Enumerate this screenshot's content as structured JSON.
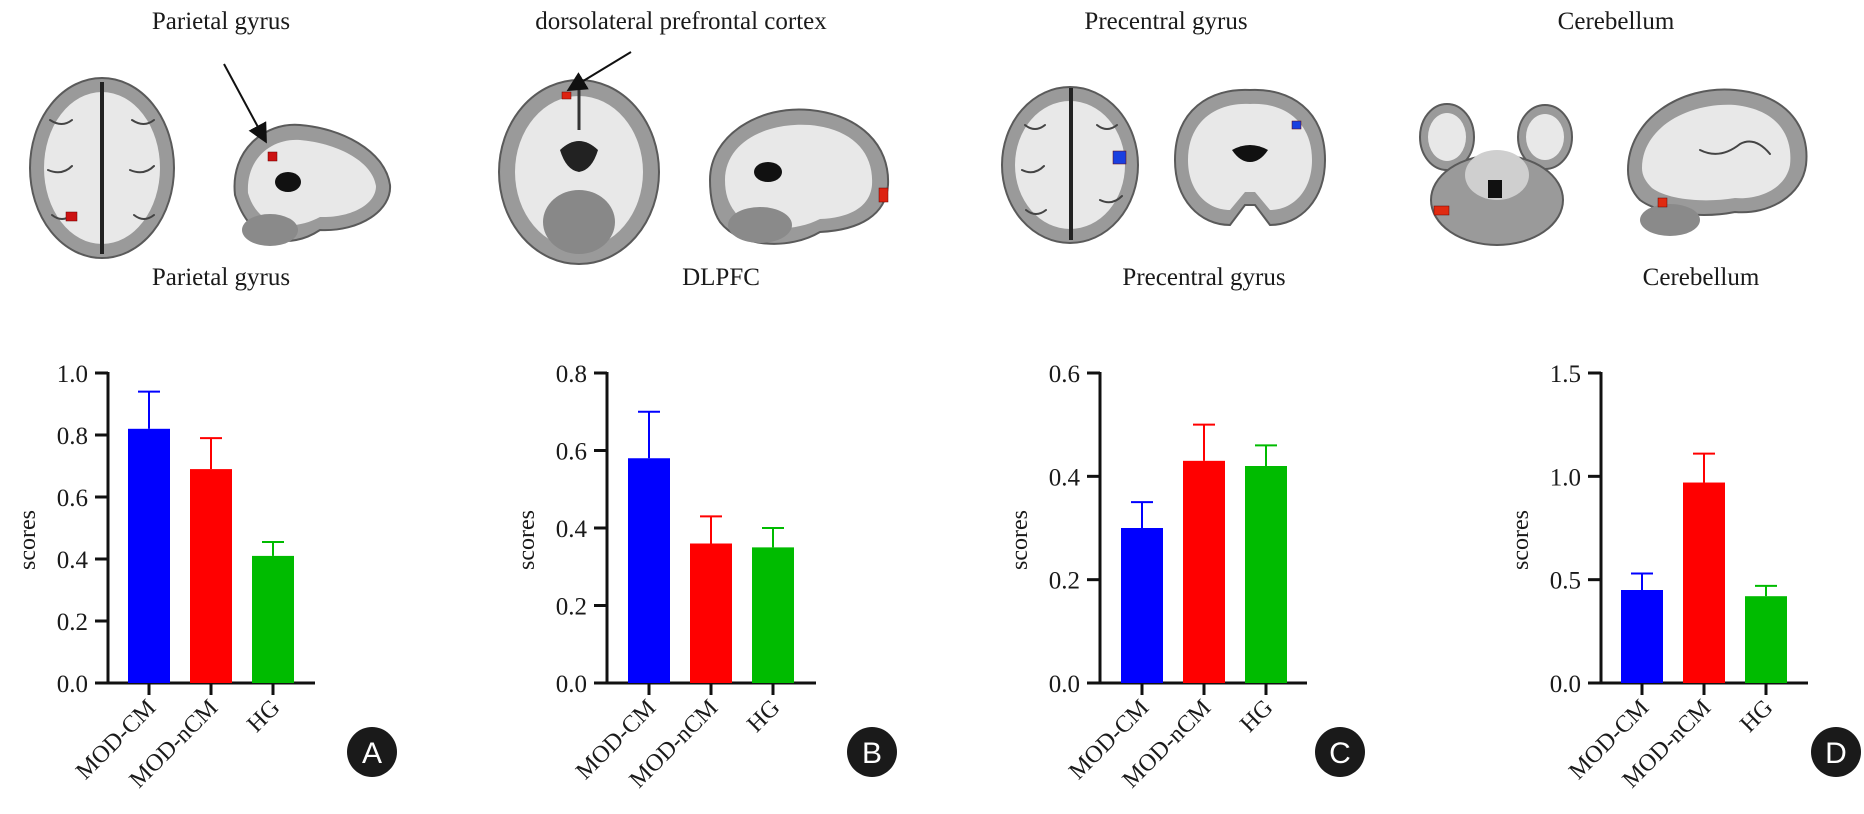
{
  "figure": {
    "regions": [
      {
        "label": "Parietal gyrus",
        "activation_color": "#cc1111",
        "letter": "A"
      },
      {
        "label": "dorsolateral prefrontal cortex",
        "activation_color": "#dd2211",
        "letter": "B"
      },
      {
        "label": "Precentral gyrus",
        "activation_color": "#1a3fe0",
        "letter": "C"
      },
      {
        "label": "Cerebellum",
        "activation_color": "#e02a10",
        "letter": "D"
      }
    ],
    "colors": {
      "MOD-CM": "#0000ff",
      "MOD-nCM": "#ff0000",
      "HG": "#00bb00"
    }
  },
  "chart_data": [
    {
      "type": "bar",
      "title": "Parietal gyrus",
      "xlabel": "",
      "ylabel": "scores",
      "categories": [
        "MOD-CM",
        "MOD-nCM",
        "HG"
      ],
      "values": [
        0.82,
        0.69,
        0.41
      ],
      "error_upper": [
        0.94,
        0.79,
        0.455
      ],
      "ylim": [
        0,
        1.0
      ],
      "yticks": [
        "0.0",
        "0.2",
        "0.4",
        "0.6",
        "0.8",
        "1.0"
      ],
      "ytick_values": [
        0,
        0.2,
        0.4,
        0.6,
        0.8,
        1.0
      ],
      "grid": false,
      "panel": "A"
    },
    {
      "type": "bar",
      "title": "DLPFC",
      "xlabel": "",
      "ylabel": "scores",
      "categories": [
        "MOD-CM",
        "MOD-nCM",
        "HG"
      ],
      "values": [
        0.58,
        0.36,
        0.35
      ],
      "error_upper": [
        0.7,
        0.43,
        0.4
      ],
      "ylim": [
        0,
        0.8
      ],
      "yticks": [
        "0.0",
        "0.2",
        "0.4",
        "0.6",
        "0.8"
      ],
      "ytick_values": [
        0,
        0.2,
        0.4,
        0.6,
        0.8
      ],
      "grid": false,
      "panel": "B"
    },
    {
      "type": "bar",
      "title": "Precentral gyrus",
      "xlabel": "",
      "ylabel": "scores",
      "categories": [
        "MOD-CM",
        "MOD-nCM",
        "HG"
      ],
      "values": [
        0.3,
        0.43,
        0.42
      ],
      "error_upper": [
        0.35,
        0.5,
        0.46
      ],
      "ylim": [
        0,
        0.6
      ],
      "yticks": [
        "0.0",
        "0.2",
        "0.4",
        "0.6"
      ],
      "ytick_values": [
        0,
        0.2,
        0.4,
        0.6
      ],
      "grid": false,
      "panel": "C"
    },
    {
      "type": "bar",
      "title": "Cerebellum",
      "xlabel": "",
      "ylabel": "scores",
      "categories": [
        "MOD-CM",
        "MOD-nCM",
        "HG"
      ],
      "values": [
        0.45,
        0.97,
        0.42
      ],
      "error_upper": [
        0.53,
        1.11,
        0.47
      ],
      "ylim": [
        0,
        1.5
      ],
      "yticks": [
        "0.0",
        "0.5",
        "1.0",
        "1.5"
      ],
      "ytick_values": [
        0,
        0.5,
        1.0,
        1.5
      ],
      "grid": false,
      "panel": "D"
    }
  ]
}
